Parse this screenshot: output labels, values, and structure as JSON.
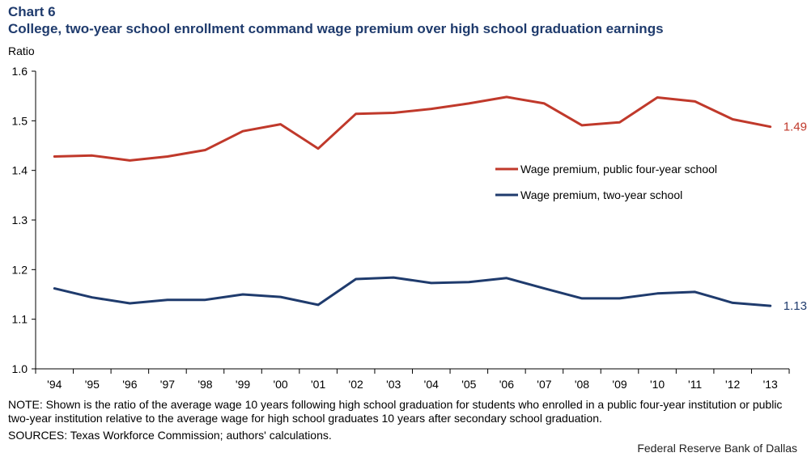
{
  "header": {
    "chart_number": "Chart 6",
    "title": "College, two-year school enrollment command wage premium over high school graduation earnings"
  },
  "footer": {
    "note": "NOTE: Shown is the ratio of the average wage 10 years following high school graduation for students who enrolled in a public four-year institution or public two-year institution relative to the average wage for high school graduates 10 years after secondary school graduation.",
    "sources": "SOURCES: Texas Workforce Commission; authors' calculations.",
    "credit": "Federal Reserve Bank of Dallas"
  },
  "chart_data": {
    "type": "line",
    "ylabel": "Ratio",
    "ylim": [
      1.0,
      1.6
    ],
    "yticks": [
      "1.0",
      "1.1",
      "1.2",
      "1.3",
      "1.4",
      "1.5",
      "1.6"
    ],
    "grid": false,
    "legend_position": "right",
    "categories": [
      "'94",
      "'95",
      "'96",
      "'97",
      "'98",
      "'99",
      "'00",
      "'01",
      "'02",
      "'03",
      "'04",
      "'05",
      "'06",
      "'07",
      "'08",
      "'09",
      "'10",
      "'11",
      "'12",
      "'13"
    ],
    "series": [
      {
        "name": "Wage premium, public four-year school",
        "color": "#c0392b",
        "end_label": "1.49",
        "values": [
          1.428,
          1.43,
          1.42,
          1.428,
          1.441,
          1.479,
          1.493,
          1.444,
          1.514,
          1.516,
          1.524,
          1.535,
          1.548,
          1.535,
          1.491,
          1.497,
          1.547,
          1.539,
          1.503,
          1.488
        ]
      },
      {
        "name": "Wage premium, two-year school",
        "color": "#1f3b6d",
        "end_label": "1.13",
        "values": [
          1.162,
          1.144,
          1.132,
          1.139,
          1.139,
          1.15,
          1.145,
          1.129,
          1.181,
          1.184,
          1.173,
          1.175,
          1.183,
          1.162,
          1.142,
          1.142,
          1.152,
          1.155,
          1.133,
          1.127
        ]
      }
    ]
  }
}
